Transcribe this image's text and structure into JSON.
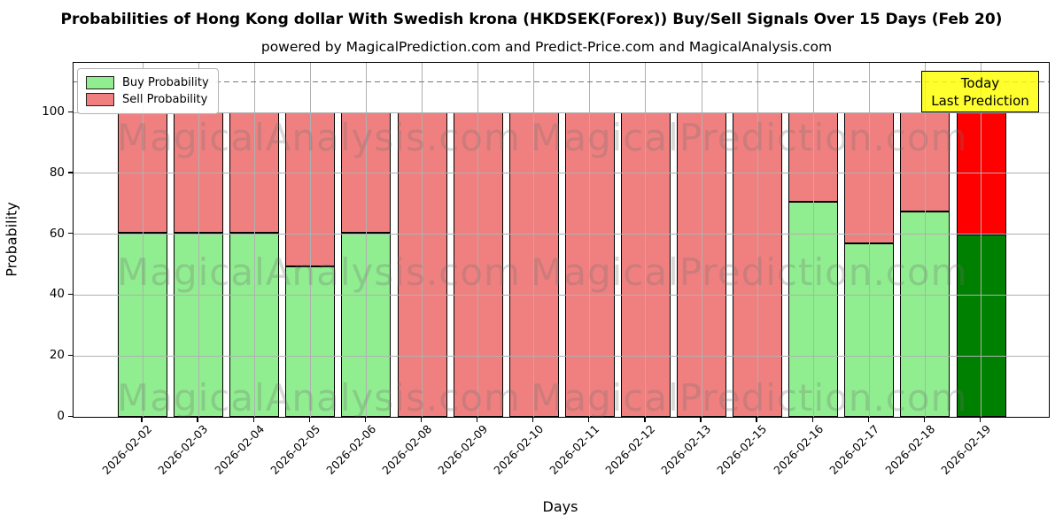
{
  "title": "Probabilities of Hong Kong dollar With Swedish krona (HKDSEK(Forex)) Buy/Sell Signals Over 15 Days (Feb 20)",
  "subtitle": "powered by MagicalPrediction.com and Predict-Price.com and MagicalAnalysis.com",
  "axes": {
    "ylabel": "Probability",
    "xlabel": "Days",
    "yticks": [
      0,
      20,
      40,
      60,
      80,
      100
    ],
    "ylim": [
      0,
      116
    ],
    "dashed_line_y": 110
  },
  "legend": {
    "items": [
      {
        "label": "Buy Probability",
        "color": "#90EE90"
      },
      {
        "label": "Sell Probability",
        "color": "#F08080"
      }
    ]
  },
  "annotation": {
    "line1": "Today",
    "line2": "Last Prediction",
    "bg": "#FFFF00"
  },
  "watermarks": {
    "texts": [
      "MagicalAnalysis.com",
      "MagicalPrediction.com"
    ]
  },
  "colors": {
    "buy": "#90EE90",
    "sell": "#F08080",
    "today_buy": "#008000",
    "today_sell": "#FF0000",
    "grid": "#b0b0b0",
    "dashed": "#7a7a7a",
    "bar_edge": "#000000"
  },
  "chart_data": {
    "type": "bar",
    "stacked": true,
    "title": "Probabilities of Hong Kong dollar With Swedish krona (HKDSEK(Forex)) Buy/Sell Signals Over 15 Days (Feb 20)",
    "xlabel": "Days",
    "ylabel": "Probability",
    "ylim": [
      0,
      116
    ],
    "grid": true,
    "legend_position": "upper left",
    "categories": [
      "2026-02-02",
      "2026-02-03",
      "2026-02-04",
      "2026-02-05",
      "2026-02-06",
      "2026-02-08",
      "2026-02-09",
      "2026-02-10",
      "2026-02-11",
      "2026-02-12",
      "2026-02-13",
      "2026-02-15",
      "2026-02-16",
      "2026-02-17",
      "2026-02-18",
      "2026-02-19"
    ],
    "series": [
      {
        "name": "Buy Probability",
        "values": [
          60.5,
          60.5,
          60.5,
          49.5,
          60.5,
          0,
          0,
          0,
          0,
          0,
          0,
          0,
          70.5,
          57,
          67.5,
          60
        ]
      },
      {
        "name": "Sell Probability",
        "values": [
          39.5,
          39.5,
          39.5,
          50.5,
          39.5,
          100,
          100,
          100,
          100,
          100,
          100,
          100,
          29.5,
          43,
          32.5,
          40
        ]
      }
    ],
    "today_index": 15,
    "threshold_dashed_line": 110
  }
}
